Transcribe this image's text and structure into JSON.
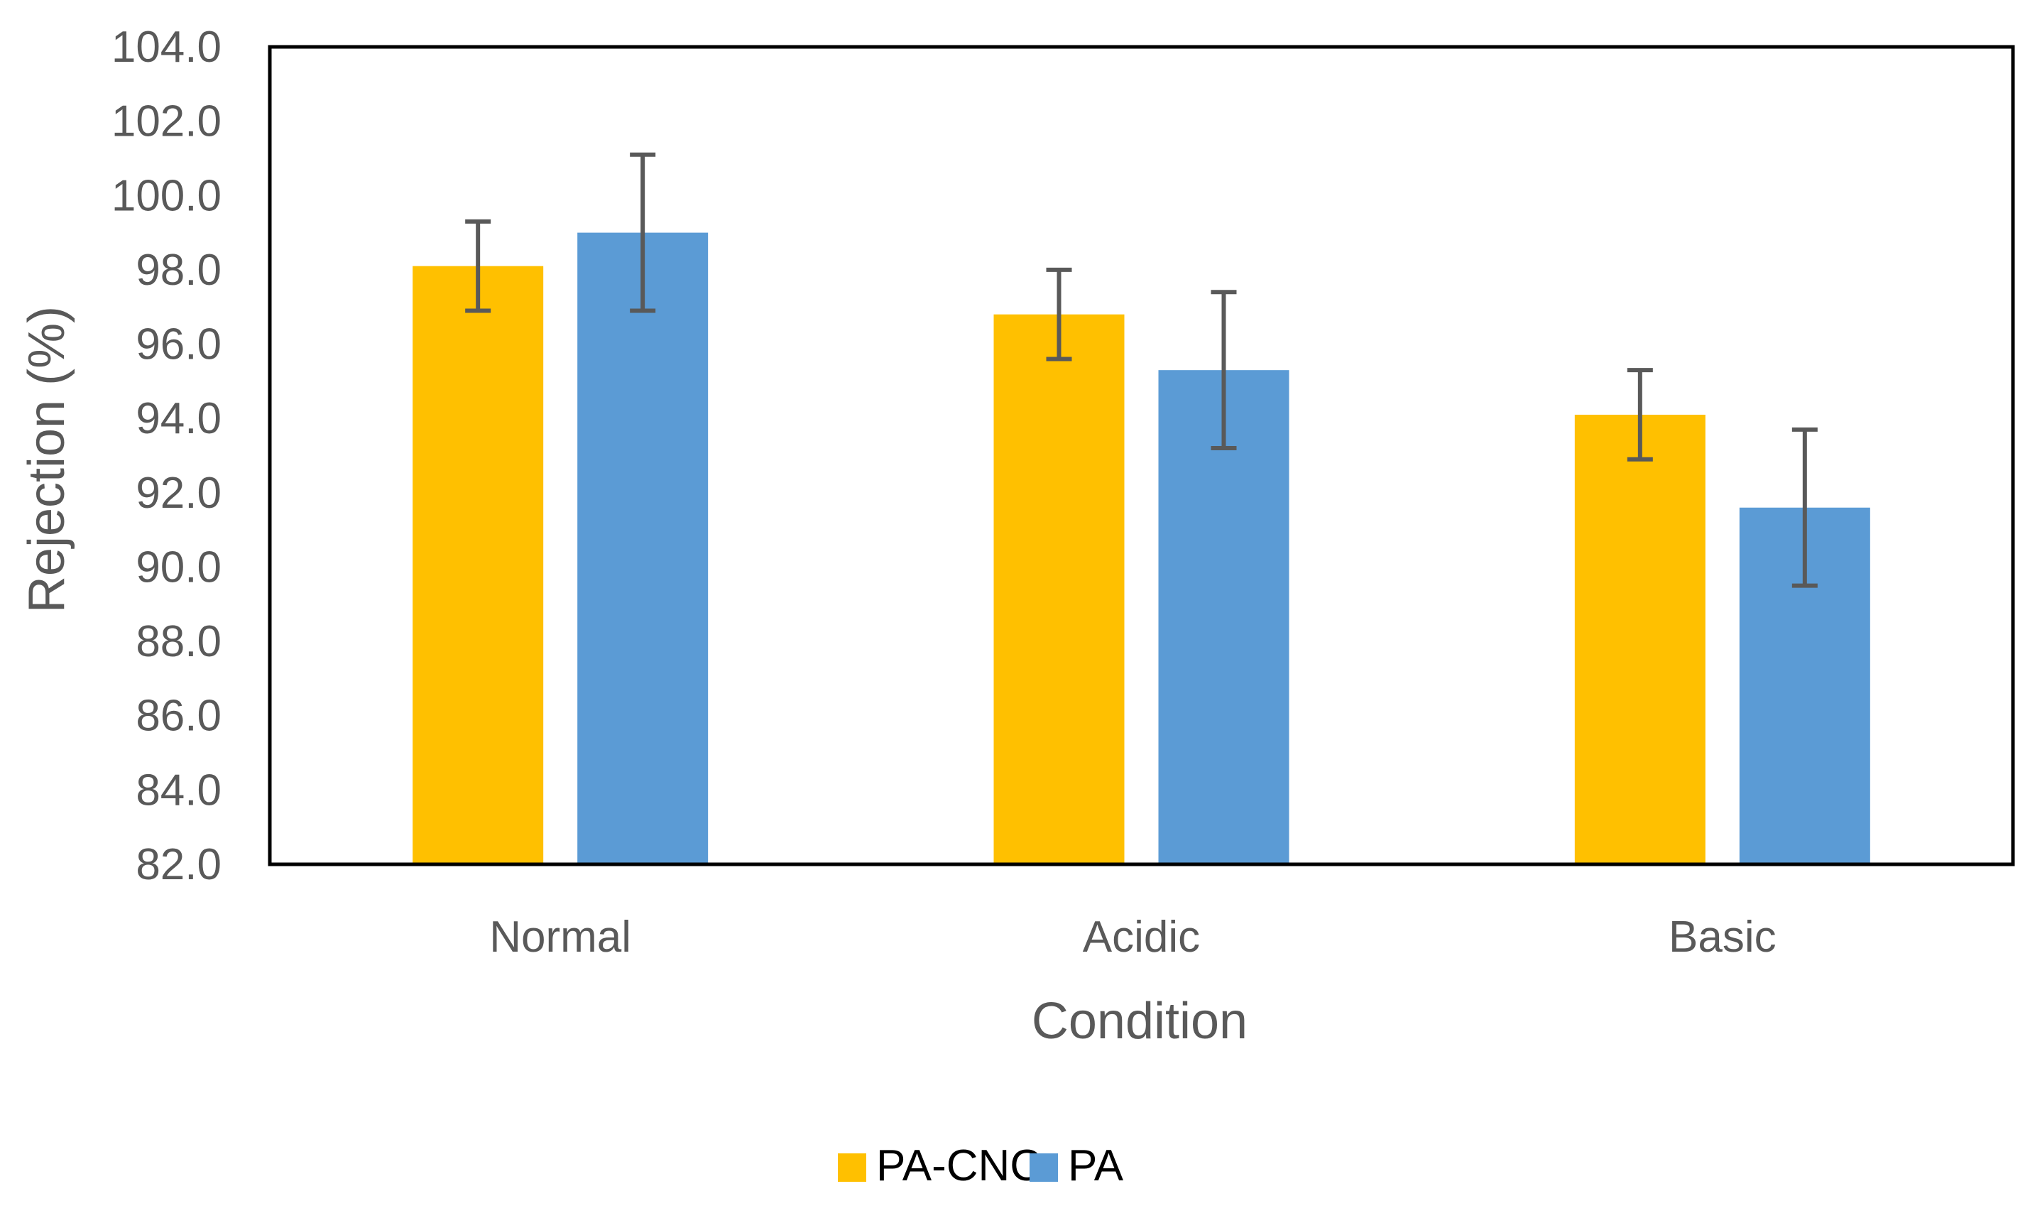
{
  "chart_data": {
    "type": "bar",
    "title": "",
    "xlabel": "Condition",
    "ylabel": "Rejection (%)",
    "categories": [
      "Normal",
      "Acidic",
      "Basic"
    ],
    "ylim": [
      82.0,
      104.0
    ],
    "ytick_step": 2.0,
    "ytick_labels": [
      "82.0",
      "84.0",
      "86.0",
      "88.0",
      "90.0",
      "92.0",
      "94.0",
      "96.0",
      "98.0",
      "100.0",
      "102.0",
      "104.0"
    ],
    "grid": false,
    "legend_position": "bottom",
    "series": [
      {
        "name": "PA-CNC",
        "color": "#FFC000",
        "values": [
          98.1,
          96.8,
          94.1
        ],
        "errors": [
          1.2,
          1.2,
          1.2
        ]
      },
      {
        "name": "PA",
        "color": "#5B9BD5",
        "values": [
          99.0,
          95.3,
          91.6
        ],
        "errors": [
          2.1,
          2.1,
          2.1
        ]
      }
    ],
    "errorbar_color": "#595959"
  }
}
